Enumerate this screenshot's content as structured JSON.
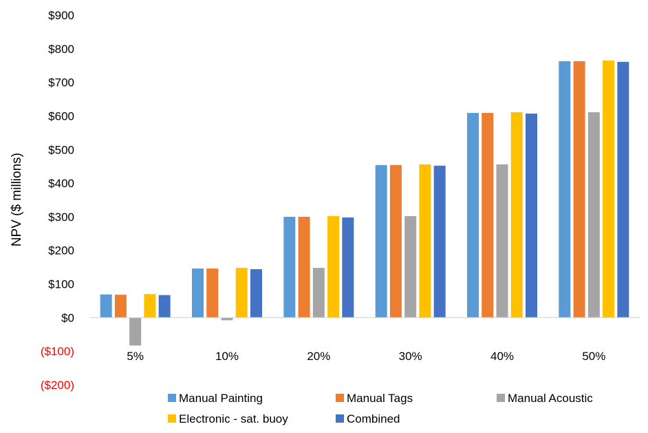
{
  "chart_data": {
    "type": "bar",
    "title": "",
    "xlabel": "",
    "ylabel": "NPV ($ millions)",
    "ylim": [
      -200,
      900
    ],
    "yticks": [
      {
        "value": 900,
        "label": "$900"
      },
      {
        "value": 800,
        "label": "$800"
      },
      {
        "value": 700,
        "label": "$700"
      },
      {
        "value": 600,
        "label": "$600"
      },
      {
        "value": 500,
        "label": "$500"
      },
      {
        "value": 400,
        "label": "$400"
      },
      {
        "value": 300,
        "label": "$300"
      },
      {
        "value": 200,
        "label": "$200"
      },
      {
        "value": 100,
        "label": "$100"
      },
      {
        "value": 0,
        "label": "$0"
      },
      {
        "value": -100,
        "label": "($100)"
      },
      {
        "value": -200,
        "label": "($200)"
      }
    ],
    "negative_label_color": "#FF0000",
    "tick_label_color": "#000000",
    "axis_line_color": "#D9D9D9",
    "grid": false,
    "legend_position": "bottom",
    "categories": [
      "5%",
      "10%",
      "20%",
      "30%",
      "40%",
      "50%"
    ],
    "series": [
      {
        "name": "Manual Painting",
        "color": "#5B9BD5",
        "values": [
          69,
          146,
          300,
          454,
          609,
          763
        ]
      },
      {
        "name": "Manual Tags",
        "color": "#ED7D31",
        "values": [
          68,
          146,
          300,
          454,
          609,
          763
        ]
      },
      {
        "name": "Manual Acoustic",
        "color": "#A5A5A5",
        "values": [
          -83,
          -8,
          148,
          302,
          456,
          611
        ]
      },
      {
        "name": "Electronic - sat. buoy",
        "color": "#FFC000",
        "values": [
          70,
          148,
          302,
          456,
          611,
          765
        ]
      },
      {
        "name": "Combined",
        "color": "#4472C4",
        "values": [
          67,
          144,
          298,
          452,
          607,
          761
        ]
      }
    ]
  }
}
